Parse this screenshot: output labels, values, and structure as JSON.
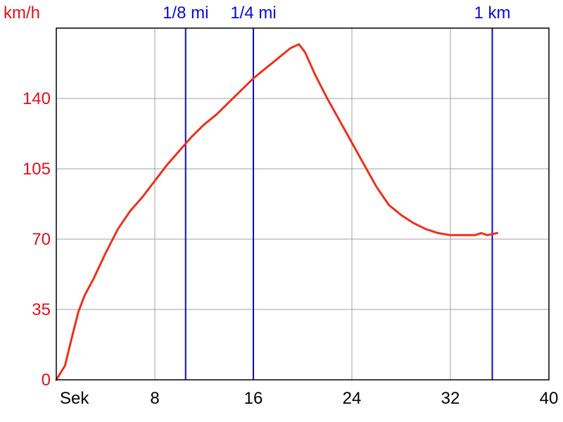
{
  "chart_data": {
    "type": "line",
    "title": "",
    "xlabel": "Sek",
    "ylabel": "km/h",
    "xlim": [
      0,
      40
    ],
    "ylim": [
      0,
      175
    ],
    "x_ticks": [
      8,
      16,
      24,
      32,
      40
    ],
    "y_ticks": [
      0,
      35,
      70,
      105,
      140
    ],
    "grid": true,
    "legend": "none",
    "colors": {
      "series": "#e8321e",
      "markers": "#0a0acc",
      "y_axis_text": "#e0101a",
      "grid": "#a0a0a0",
      "frame": "#000000"
    },
    "markers": [
      {
        "label": "1/8 mi",
        "x": 10.5
      },
      {
        "label": "1/4 mi",
        "x": 16.0
      },
      {
        "label": "1 km",
        "x": 35.4
      }
    ],
    "series": [
      {
        "x": [
          0,
          0.7,
          1.3,
          1.8,
          2.3,
          3.0,
          4.0,
          5.0,
          6.0,
          7.0,
          8.0,
          9.0,
          10.0,
          11.0,
          12.0,
          13.0,
          14.0,
          15.0,
          16.0,
          17.0,
          18.0,
          19.0,
          19.7,
          20.2,
          21.0,
          22.0,
          23.0,
          24.0,
          25.0,
          26.0,
          27.0,
          28.0,
          29.0,
          30.0,
          31.0,
          32.0,
          33.0,
          34.0,
          34.5,
          35.0,
          35.8
        ],
        "values": [
          0,
          7,
          22,
          34,
          42,
          50,
          63,
          75,
          84,
          91,
          99,
          107,
          114,
          121,
          127,
          132,
          138,
          144,
          150,
          155,
          160,
          165,
          167,
          163,
          152,
          140,
          129,
          118,
          107,
          96,
          87,
          82,
          78,
          75,
          73,
          72,
          72,
          72,
          73,
          72,
          73
        ]
      }
    ]
  }
}
